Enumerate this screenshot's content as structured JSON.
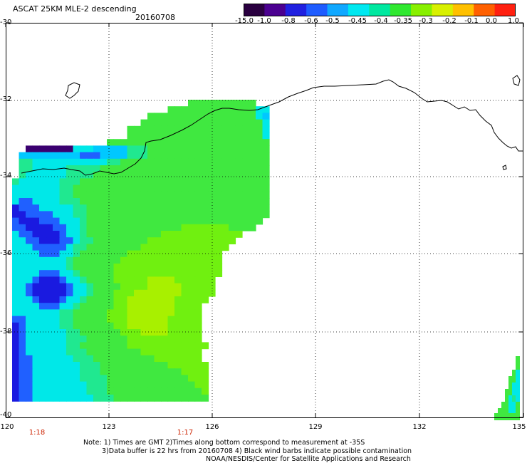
{
  "title": "ASCAT 25KM MLE-2 descending",
  "date": "20160708",
  "colorbar": {
    "labels": [
      "-15.0",
      "-1.0",
      "-0.8",
      "-0.6",
      "-0.5",
      "-0.45",
      "-0.4",
      "-0.35",
      "-0.3",
      "-0.2",
      "-0.1",
      "0.0",
      "1.0"
    ],
    "colors": [
      "#2a0040",
      "#4b0090",
      "#2020e0",
      "#1e5cff",
      "#10a8ff",
      "#00e8f0",
      "#00e8a0",
      "#30e830",
      "#88f000",
      "#d8f000",
      "#ffc000",
      "#ff6000",
      "#ff2010"
    ]
  },
  "axes": {
    "lat_labels": [
      "-30",
      "-32",
      "-34",
      "-36",
      "-38",
      "-40"
    ],
    "lon_labels": [
      "120",
      "123",
      "126",
      "129",
      "132",
      "135"
    ]
  },
  "time_labels": [
    "1:18",
    "1:17"
  ],
  "notes": {
    "line1": "Note: 1) Times are GMT 2)Times along bottom correspond to measurement at -35S",
    "line2": "3)Data buffer is 22 hrs from 20160708 4) Black wind barbs indicate possible contamination",
    "line3": "NOAA/NESDIS/Center for Satellite Applications and Research"
  }
}
